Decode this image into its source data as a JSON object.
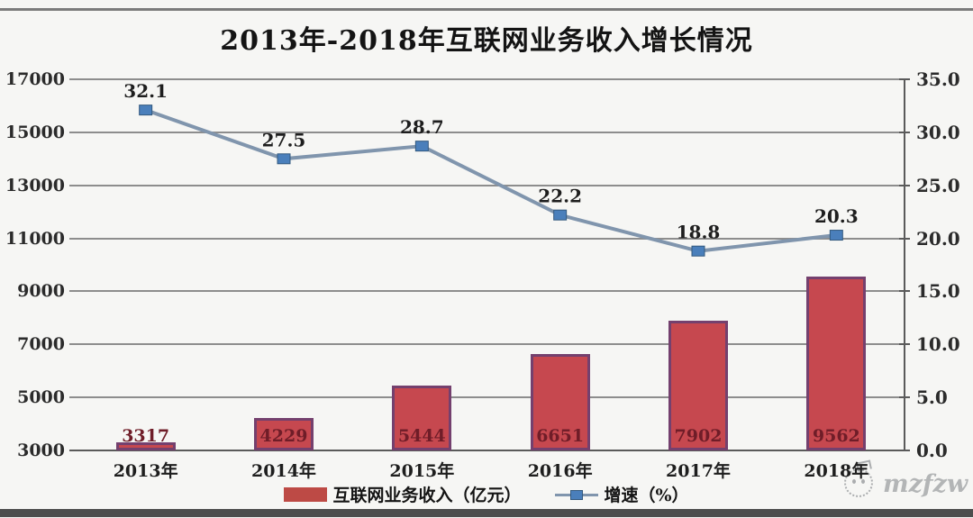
{
  "title": "2013年-2018年互联网业务收入增长情况",
  "watermark": {
    "text": "mzfzw",
    "logo": "face-logo"
  },
  "legend": {
    "items": [
      {
        "label": "互联网业务收入（亿元）",
        "swatch": "bar",
        "color": "#c0504d"
      },
      {
        "label": "增速（%）",
        "swatch": "line-marker",
        "color": "#4a7fbb"
      }
    ]
  },
  "colors": {
    "background": "#f6f6f4",
    "bar_fill": "#c6484f",
    "bar_border": "#74406e",
    "bar_label": "#6f1d28",
    "line": "#8095ad",
    "marker_fill": "#4a7fbb",
    "marker_border": "#33597e",
    "gridline": "#8d8d8d",
    "text": "#1e1e1e"
  },
  "chart_data": {
    "type": "bar",
    "subtype": "combo-bar-line",
    "title": "2013年-2018年互联网业务收入增长情况",
    "categories": [
      "2013年",
      "2014年",
      "2015年",
      "2016年",
      "2017年",
      "2018年"
    ],
    "series": [
      {
        "name": "互联网业务收入（亿元）",
        "type": "bar",
        "axis": "left",
        "values": [
          3317,
          4229,
          5444,
          6651,
          7902,
          9562
        ],
        "labels": [
          "3317",
          "4229",
          "5444",
          "6651",
          "7902",
          "9562"
        ]
      },
      {
        "name": "增速（%）",
        "type": "line",
        "axis": "right",
        "values": [
          32.1,
          27.5,
          28.7,
          22.2,
          18.8,
          20.3
        ],
        "labels": [
          "32.1",
          "27.5",
          "28.7",
          "22.2",
          "18.8",
          "20.3"
        ]
      }
    ],
    "left_axis": {
      "min": 3000,
      "max": 17000,
      "ticks": [
        3000,
        5000,
        7000,
        9000,
        11000,
        13000,
        15000,
        17000
      ]
    },
    "right_axis": {
      "min": 0,
      "max": 35,
      "ticks": [
        "0.0",
        "5.0",
        "10.0",
        "15.0",
        "20.0",
        "25.0",
        "30.0",
        "35.0"
      ]
    },
    "grid": true,
    "legend_position": "bottom"
  }
}
